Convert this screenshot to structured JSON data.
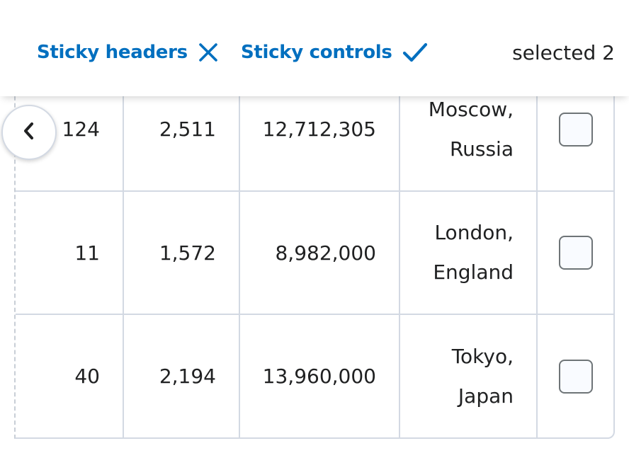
{
  "controls": {
    "sticky_headers": {
      "label": "Sticky headers",
      "state": "off",
      "icon": "x-icon"
    },
    "sticky_controls": {
      "label": "Sticky controls",
      "state": "on",
      "icon": "checkmark-icon"
    },
    "selected_text": "selected 2"
  },
  "colors": {
    "accent": "#006fbf",
    "border": "#d3d9e3",
    "text": "#202122"
  },
  "table": {
    "rows": [
      {
        "col1": "124",
        "col2": "2,511",
        "col3": "12,712,305",
        "city": "Moscow,",
        "country": "Russia",
        "checked": false
      },
      {
        "col1": "11",
        "col2": "1,572",
        "col3": "8,982,000",
        "city": "London,",
        "country": "England",
        "checked": false
      },
      {
        "col1": "40",
        "col2": "2,194",
        "col3": "13,960,000",
        "city": "Tokyo,",
        "country": "Japan",
        "checked": false
      }
    ]
  },
  "scroll_button": {
    "icon": "chevron-left-icon"
  }
}
